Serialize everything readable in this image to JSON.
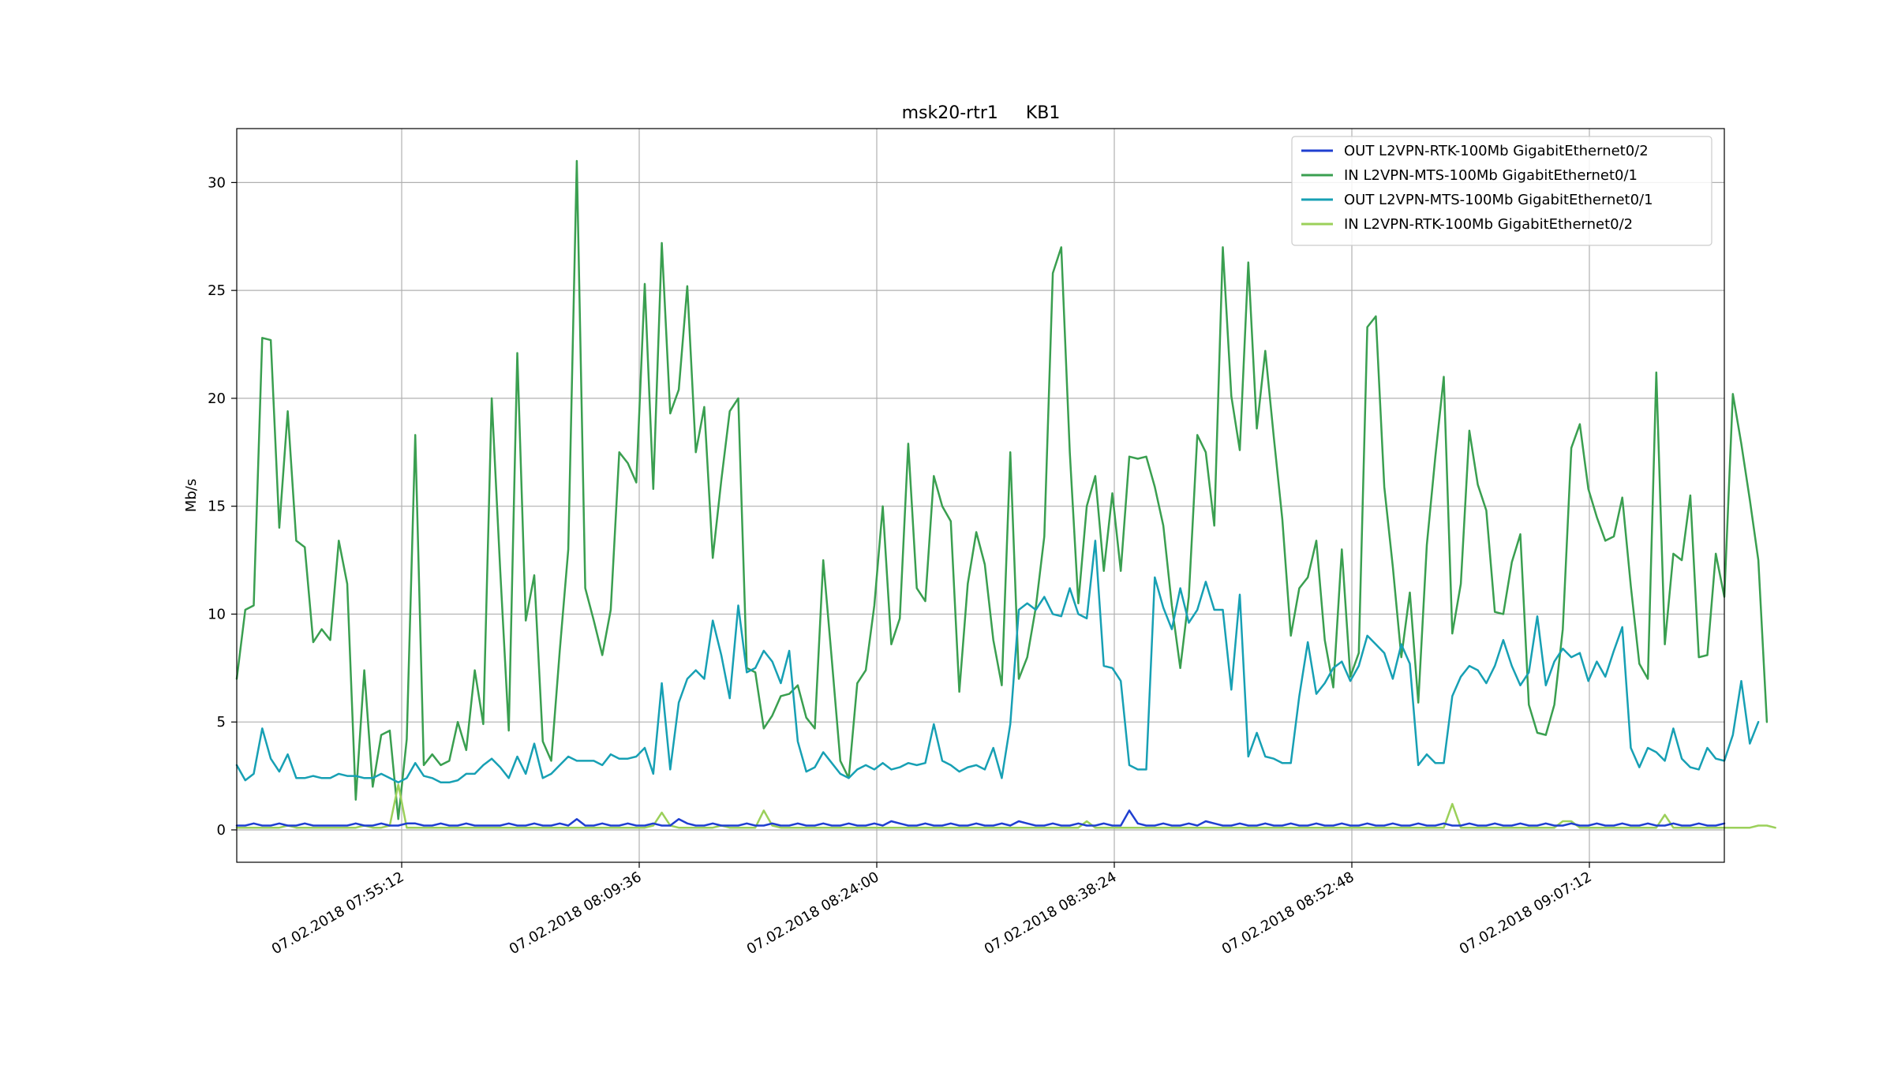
{
  "chart_data": {
    "type": "line",
    "title": "msk20-rtr1     KB1",
    "xlabel": "",
    "ylabel": "Mb/s",
    "ylim": [
      -1.5,
      32.5
    ],
    "y_ticks": [
      0,
      5,
      10,
      15,
      20,
      25,
      30
    ],
    "x_ticks": [
      "07.02.2018 07:55:12",
      "07.02.2018 08:09:36",
      "07.02.2018 08:24:00",
      "07.02.2018 08:38:24",
      "07.02.2018 08:52:48",
      "07.02.2018 09:07:12"
    ],
    "grid": true,
    "legend_position": "top-right",
    "series": [
      {
        "name": "OUT L2VPN-RTK-100Mb GigabitEthernet0/2",
        "color": "#1f3fd0",
        "values": [
          0.2,
          0.2,
          0.3,
          0.2,
          0.2,
          0.3,
          0.2,
          0.2,
          0.3,
          0.2,
          0.2,
          0.2,
          0.2,
          0.2,
          0.3,
          0.2,
          0.2,
          0.3,
          0.2,
          0.2,
          0.3,
          0.3,
          0.2,
          0.2,
          0.3,
          0.2,
          0.2,
          0.3,
          0.2,
          0.2,
          0.2,
          0.2,
          0.3,
          0.2,
          0.2,
          0.3,
          0.2,
          0.2,
          0.3,
          0.2,
          0.5,
          0.2,
          0.2,
          0.3,
          0.2,
          0.2,
          0.3,
          0.2,
          0.2,
          0.3,
          0.2,
          0.2,
          0.5,
          0.3,
          0.2,
          0.2,
          0.3,
          0.2,
          0.2,
          0.2,
          0.3,
          0.2,
          0.2,
          0.3,
          0.2,
          0.2,
          0.3,
          0.2,
          0.2,
          0.3,
          0.2,
          0.2,
          0.3,
          0.2,
          0.2,
          0.3,
          0.2,
          0.4,
          0.3,
          0.2,
          0.2,
          0.3,
          0.2,
          0.2,
          0.3,
          0.2,
          0.2,
          0.3,
          0.2,
          0.2,
          0.3,
          0.2,
          0.4,
          0.3,
          0.2,
          0.2,
          0.3,
          0.2,
          0.2,
          0.3,
          0.2,
          0.2,
          0.3,
          0.2,
          0.2,
          0.9,
          0.3,
          0.2,
          0.2,
          0.3,
          0.2,
          0.2,
          0.3,
          0.2,
          0.4,
          0.3,
          0.2,
          0.2,
          0.3,
          0.2,
          0.2,
          0.3,
          0.2,
          0.2,
          0.3,
          0.2,
          0.2,
          0.3,
          0.2,
          0.2,
          0.3,
          0.2,
          0.2,
          0.3,
          0.2,
          0.2,
          0.3,
          0.2,
          0.2,
          0.3,
          0.2,
          0.2,
          0.3,
          0.2,
          0.2,
          0.3,
          0.2,
          0.2,
          0.3,
          0.2,
          0.2,
          0.3,
          0.2,
          0.2,
          0.3,
          0.2,
          0.2,
          0.3,
          0.2,
          0.2,
          0.3,
          0.2,
          0.2,
          0.3,
          0.2,
          0.2,
          0.3,
          0.2,
          0.2,
          0.3,
          0.2,
          0.2,
          0.3,
          0.2,
          0.2,
          0.3
        ]
      },
      {
        "name": "IN L2VPN-MTS-100Mb GigabitEthernet0/1",
        "color": "#3a9f50",
        "values": [
          7.0,
          10.2,
          10.4,
          22.8,
          22.7,
          14.0,
          19.4,
          13.4,
          13.1,
          8.7,
          9.3,
          8.8,
          13.4,
          11.4,
          1.4,
          7.4,
          2.0,
          4.4,
          4.6,
          0.5,
          4.2,
          18.3,
          3.0,
          3.5,
          3.0,
          3.2,
          5.0,
          3.7,
          7.4,
          4.9,
          20.0,
          12.0,
          4.6,
          22.1,
          9.7,
          11.8,
          4.1,
          3.2,
          8.3,
          13.0,
          31.0,
          11.2,
          9.7,
          8.1,
          10.2,
          17.5,
          17.0,
          16.1,
          25.3,
          15.8,
          27.2,
          19.3,
          20.4,
          25.2,
          17.5,
          19.6,
          12.6,
          16.2,
          19.4,
          20.0,
          7.5,
          7.3,
          4.7,
          5.3,
          6.2,
          6.3,
          6.7,
          5.2,
          4.7,
          12.5,
          7.9,
          3.2,
          2.4,
          6.8,
          7.4,
          10.4,
          15.0,
          8.6,
          9.8,
          17.9,
          11.2,
          10.6,
          16.4,
          15.0,
          14.3,
          6.4,
          11.4,
          13.8,
          12.3,
          8.8,
          6.7,
          17.5,
          7.0,
          8.0,
          10.3,
          13.6,
          25.8,
          27.0,
          17.5,
          10.5,
          15.0,
          16.4,
          12.0,
          15.6,
          12.0,
          17.3,
          17.2,
          17.3,
          15.9,
          14.1,
          10.4,
          7.5,
          10.8,
          18.3,
          17.5,
          14.1,
          27.0,
          20.1,
          17.6,
          26.3,
          18.6,
          22.2,
          18.2,
          14.4,
          9.0,
          11.2,
          11.7,
          13.4,
          8.8,
          6.6,
          13.0,
          7.1,
          8.2,
          23.3,
          23.8,
          15.9,
          12.2,
          8.0,
          11.0,
          5.9,
          13.2,
          17.3,
          21.0,
          9.1,
          11.4,
          18.5,
          16.0,
          14.8,
          10.1,
          10.0,
          12.4,
          13.7,
          5.8,
          4.5,
          4.4,
          5.8,
          9.3,
          17.7,
          18.8,
          15.8,
          14.5,
          13.4,
          13.6,
          15.4,
          11.3,
          7.7,
          7.0,
          21.2,
          8.6,
          12.8,
          12.5,
          15.5,
          8.0,
          8.1,
          12.8,
          10.8,
          20.2,
          17.9,
          15.3,
          12.5,
          5.0
        ]
      },
      {
        "name": "OUT L2VPN-MTS-100Mb GigabitEthernet0/1",
        "color": "#17a0b4",
        "values": [
          3.0,
          2.3,
          2.6,
          4.7,
          3.3,
          2.7,
          3.5,
          2.4,
          2.4,
          2.5,
          2.4,
          2.4,
          2.6,
          2.5,
          2.5,
          2.4,
          2.4,
          2.6,
          2.4,
          2.2,
          2.4,
          3.1,
          2.5,
          2.4,
          2.2,
          2.2,
          2.3,
          2.6,
          2.6,
          3.0,
          3.3,
          2.9,
          2.4,
          3.4,
          2.6,
          4.0,
          2.4,
          2.6,
          3.0,
          3.4,
          3.2,
          3.2,
          3.2,
          3.0,
          3.5,
          3.3,
          3.3,
          3.4,
          3.8,
          2.6,
          6.8,
          2.8,
          5.9,
          7.0,
          7.4,
          7.0,
          9.7,
          8.1,
          6.1,
          10.4,
          7.3,
          7.5,
          8.3,
          7.8,
          6.8,
          8.3,
          4.1,
          2.7,
          2.9,
          3.6,
          3.1,
          2.6,
          2.4,
          2.8,
          3.0,
          2.8,
          3.1,
          2.8,
          2.9,
          3.1,
          3.0,
          3.1,
          4.9,
          3.2,
          3.0,
          2.7,
          2.9,
          3.0,
          2.8,
          3.8,
          2.4,
          4.9,
          10.2,
          10.5,
          10.2,
          10.8,
          10.0,
          9.9,
          11.2,
          10.0,
          9.8,
          13.4,
          7.6,
          7.5,
          6.9,
          3.0,
          2.8,
          2.8,
          11.7,
          10.3,
          9.3,
          11.2,
          9.6,
          10.2,
          11.5,
          10.2,
          10.2,
          6.5,
          10.9,
          3.4,
          4.5,
          3.4,
          3.3,
          3.1,
          3.1,
          6.2,
          8.7,
          6.3,
          6.8,
          7.5,
          7.8,
          6.9,
          7.6,
          9.0,
          8.6,
          8.2,
          7.0,
          8.6,
          7.7,
          3.0,
          3.5,
          3.1,
          3.1,
          6.2,
          7.1,
          7.6,
          7.4,
          6.8,
          7.6,
          8.8,
          7.6,
          6.7,
          7.3,
          9.9,
          6.7,
          7.8,
          8.4,
          8.0,
          8.2,
          6.9,
          7.8,
          7.1,
          8.3,
          9.4,
          3.8,
          2.9,
          3.8,
          3.6,
          3.2,
          4.7,
          3.3,
          2.9,
          2.8,
          3.8,
          3.3,
          3.2,
          4.4,
          6.9,
          4.0,
          5.0
        ]
      },
      {
        "name": "IN L2VPN-RTK-100Mb GigabitEthernet0/2",
        "color": "#9bd05a",
        "values": [
          0.1,
          0.1,
          0.1,
          0.1,
          0.1,
          0.1,
          0.2,
          0.1,
          0.1,
          0.1,
          0.1,
          0.1,
          0.1,
          0.1,
          0.1,
          0.2,
          0.1,
          0.1,
          0.2,
          2.1,
          0.1,
          0.1,
          0.1,
          0.1,
          0.1,
          0.1,
          0.1,
          0.1,
          0.1,
          0.1,
          0.1,
          0.1,
          0.1,
          0.1,
          0.1,
          0.1,
          0.1,
          0.1,
          0.1,
          0.1,
          0.1,
          0.1,
          0.1,
          0.1,
          0.1,
          0.1,
          0.1,
          0.1,
          0.1,
          0.2,
          0.8,
          0.2,
          0.1,
          0.1,
          0.1,
          0.1,
          0.1,
          0.2,
          0.1,
          0.1,
          0.1,
          0.1,
          0.9,
          0.2,
          0.1,
          0.1,
          0.1,
          0.1,
          0.1,
          0.1,
          0.1,
          0.1,
          0.1,
          0.1,
          0.1,
          0.1,
          0.1,
          0.1,
          0.1,
          0.1,
          0.1,
          0.1,
          0.1,
          0.1,
          0.1,
          0.1,
          0.1,
          0.1,
          0.1,
          0.1,
          0.1,
          0.1,
          0.1,
          0.1,
          0.1,
          0.1,
          0.1,
          0.1,
          0.1,
          0.1,
          0.4,
          0.1,
          0.1,
          0.1,
          0.1,
          0.1,
          0.1,
          0.1,
          0.1,
          0.1,
          0.1,
          0.1,
          0.1,
          0.1,
          0.1,
          0.1,
          0.1,
          0.1,
          0.1,
          0.1,
          0.1,
          0.1,
          0.1,
          0.1,
          0.1,
          0.1,
          0.1,
          0.1,
          0.1,
          0.1,
          0.1,
          0.1,
          0.1,
          0.1,
          0.1,
          0.1,
          0.1,
          0.1,
          0.1,
          0.1,
          0.1,
          0.1,
          0.1,
          1.2,
          0.1,
          0.1,
          0.1,
          0.1,
          0.1,
          0.1,
          0.1,
          0.1,
          0.1,
          0.1,
          0.1,
          0.1,
          0.4,
          0.4,
          0.1,
          0.1,
          0.1,
          0.1,
          0.1,
          0.1,
          0.1,
          0.1,
          0.1,
          0.1,
          0.7,
          0.1,
          0.1,
          0.1,
          0.1,
          0.1,
          0.1,
          0.1,
          0.1,
          0.1,
          0.1,
          0.2,
          0.2,
          0.1
        ]
      }
    ]
  }
}
